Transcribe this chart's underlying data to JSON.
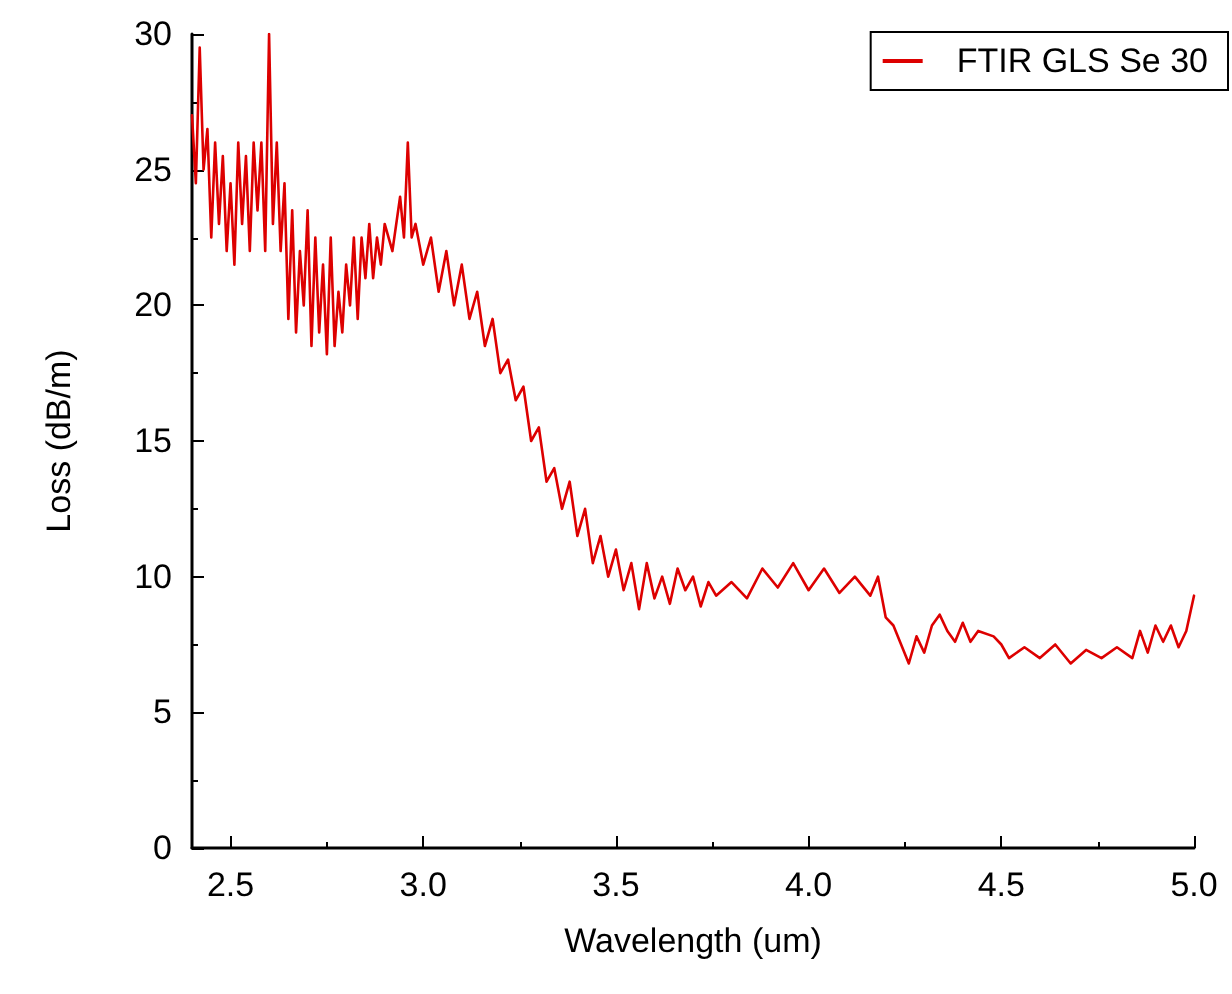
{
  "chart_data": {
    "type": "line",
    "xlabel": "Wavelength (um)",
    "ylabel": "Loss (dB/m)",
    "xlim": [
      2.4,
      5.0
    ],
    "xticks": [
      2.5,
      {
        "value": 3,
        "label": "3.0"
      },
      3.5,
      {
        "value": 4,
        "label": "4.0"
      },
      4.5,
      {
        "value": 5,
        "label": "5.0"
      }
    ],
    "ylim": [
      0,
      30
    ],
    "yticks": [
      0,
      5,
      10,
      15,
      20,
      25,
      30
    ],
    "grid": false,
    "legend": "top right",
    "marker": "none",
    "line_style": "solid",
    "series": [
      {
        "name": "FTIR GLS Se 30",
        "color": "#dd0000",
        "x": [
          2.4,
          2.41,
          2.42,
          2.43,
          2.44,
          2.45,
          2.46,
          2.47,
          2.48,
          2.49,
          2.5,
          2.51,
          2.52,
          2.53,
          2.54,
          2.55,
          2.56,
          2.57,
          2.58,
          2.59,
          2.6,
          2.61,
          2.62,
          2.63,
          2.64,
          2.65,
          2.66,
          2.67,
          2.68,
          2.69,
          2.7,
          2.71,
          2.72,
          2.73,
          2.74,
          2.75,
          2.76,
          2.77,
          2.78,
          2.79,
          2.8,
          2.81,
          2.82,
          2.83,
          2.84,
          2.85,
          2.86,
          2.87,
          2.88,
          2.89,
          2.9,
          2.92,
          2.94,
          2.95,
          2.96,
          2.97,
          2.98,
          3.0,
          3.02,
          3.04,
          3.06,
          3.08,
          3.1,
          3.12,
          3.14,
          3.16,
          3.18,
          3.2,
          3.22,
          3.24,
          3.26,
          3.28,
          3.3,
          3.32,
          3.34,
          3.36,
          3.38,
          3.4,
          3.42,
          3.44,
          3.46,
          3.48,
          3.5,
          3.52,
          3.54,
          3.56,
          3.58,
          3.6,
          3.62,
          3.64,
          3.66,
          3.68,
          3.7,
          3.72,
          3.74,
          3.76,
          3.8,
          3.84,
          3.88,
          3.92,
          3.96,
          4.0,
          4.04,
          4.08,
          4.12,
          4.16,
          4.18,
          4.2,
          4.22,
          4.24,
          4.26,
          4.28,
          4.3,
          4.32,
          4.34,
          4.36,
          4.38,
          4.4,
          4.42,
          4.44,
          4.48,
          4.5,
          4.52,
          4.56,
          4.6,
          4.64,
          4.68,
          4.72,
          4.76,
          4.8,
          4.84,
          4.86,
          4.88,
          4.9,
          4.92,
          4.94,
          4.96,
          4.98,
          5.0
        ],
        "values": [
          27,
          24.5,
          29.5,
          25,
          26.5,
          22.5,
          26,
          23,
          25.5,
          22,
          24.5,
          21.5,
          26,
          23,
          25.5,
          22,
          26,
          23.5,
          26,
          22,
          30,
          23,
          26,
          22,
          24.5,
          19.5,
          23.5,
          19,
          22,
          20,
          23.5,
          18.5,
          22.5,
          19,
          21.5,
          18.2,
          22.5,
          18.5,
          20.5,
          19,
          21.5,
          20,
          22.5,
          19.5,
          22.5,
          21,
          23,
          21,
          22.5,
          21.5,
          23,
          22,
          24,
          22.5,
          26,
          22.5,
          23,
          21.5,
          22.5,
          20.5,
          22,
          20,
          21.5,
          19.5,
          20.5,
          18.5,
          19.5,
          17.5,
          18,
          16.5,
          17,
          15,
          15.5,
          13.5,
          14,
          12.5,
          13.5,
          11.5,
          12.5,
          10.5,
          11.5,
          10,
          11,
          9.5,
          10.5,
          8.8,
          10.5,
          9.2,
          10,
          9,
          10.3,
          9.5,
          10,
          8.9,
          9.8,
          9.3,
          9.8,
          9.2,
          10.3,
          9.6,
          10.5,
          9.5,
          10.3,
          9.4,
          10,
          9.3,
          10,
          8.5,
          8.2,
          7.5,
          6.8,
          7.8,
          7.2,
          8.2,
          8.6,
          8.0,
          7.6,
          8.3,
          7.6,
          8.0,
          7.8,
          7.5,
          7.0,
          7.4,
          7.0,
          7.5,
          6.8,
          7.3,
          7.0,
          7.4,
          7.0,
          8.0,
          7.2,
          8.2,
          7.6,
          8.2,
          7.4,
          8.0,
          9.3
        ]
      }
    ]
  }
}
